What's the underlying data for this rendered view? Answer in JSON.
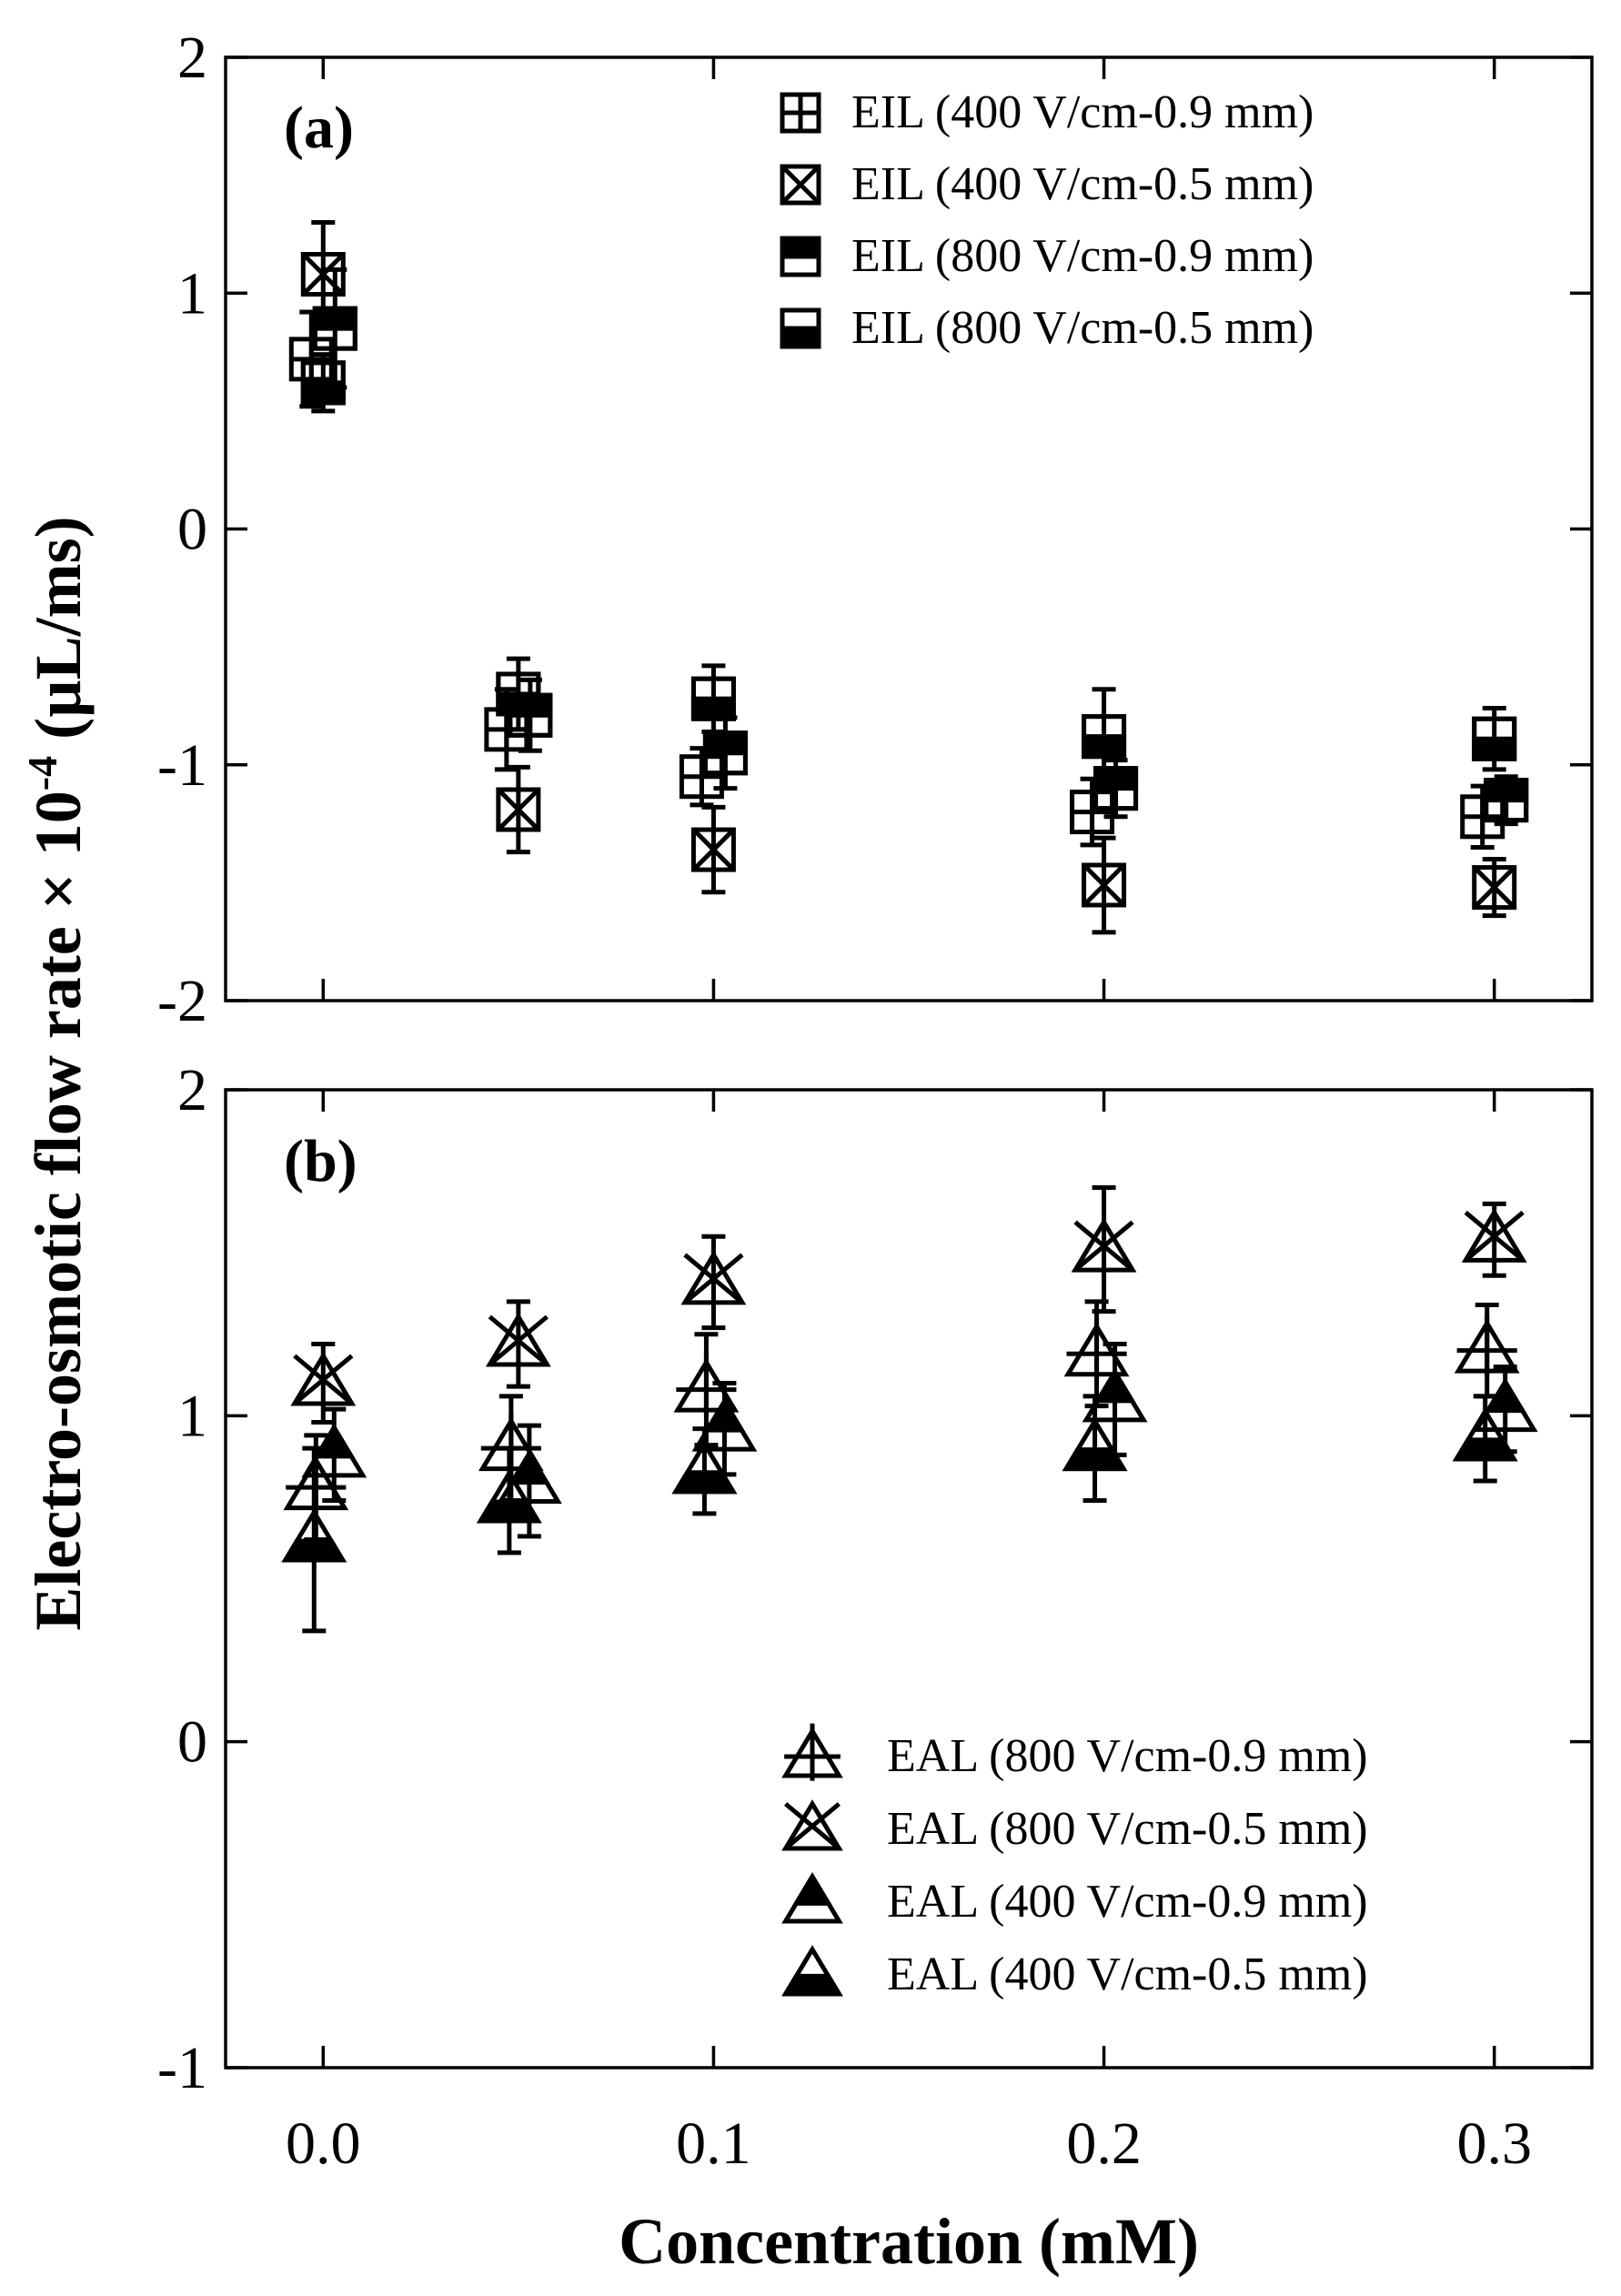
{
  "chart_data": [
    {
      "panel": "(a)",
      "type": "scatter",
      "ylim": [
        -2,
        2
      ],
      "xlim": [
        -0.025,
        0.325
      ],
      "x_ticks": [
        "0.0",
        "0.1",
        "0.2",
        "0.3"
      ],
      "y_ticks": [
        "-2",
        "-1",
        "0",
        "1",
        "2"
      ],
      "legend_position": "top-right",
      "series": [
        {
          "name": "EIL (400 V/cm-0.9 mm)",
          "marker": "square-plus",
          "x": [
            0.0,
            0.05,
            0.1,
            0.2,
            0.3
          ],
          "y": [
            0.72,
            -0.85,
            -1.05,
            -1.2,
            -1.22
          ],
          "err": [
            0.2,
            0.17,
            0.12,
            0.14,
            0.13
          ]
        },
        {
          "name": "EIL (400 V/cm-0.5 mm)",
          "marker": "square-x",
          "x": [
            0.0,
            0.05,
            0.1,
            0.2,
            0.3
          ],
          "y": [
            1.08,
            -1.19,
            -1.36,
            -1.51,
            -1.52
          ],
          "err": [
            0.22,
            0.18,
            0.18,
            0.2,
            0.12
          ]
        },
        {
          "name": "EIL (800 V/cm-0.9 mm)",
          "marker": "square-top-filled",
          "x": [
            0.0,
            0.05,
            0.1,
            0.2,
            0.3
          ],
          "y": [
            0.85,
            -0.79,
            -0.95,
            -1.1,
            -1.15
          ],
          "err": [
            0.25,
            0.15,
            0.15,
            0.12,
            0.1
          ]
        },
        {
          "name": "EIL (800 V/cm-0.5 mm)",
          "marker": "square-bottom-filled",
          "x": [
            0.0,
            0.05,
            0.1,
            0.2,
            0.3
          ],
          "y": [
            0.62,
            -0.7,
            -0.72,
            -0.88,
            -0.89
          ],
          "err": [
            0.12,
            0.15,
            0.14,
            0.2,
            0.13
          ]
        }
      ]
    },
    {
      "panel": "(b)",
      "type": "scatter",
      "ylim": [
        -1,
        2
      ],
      "xlim": [
        -0.025,
        0.325
      ],
      "x_ticks": [
        "0.0",
        "0.1",
        "0.2",
        "0.3"
      ],
      "y_ticks": [
        "-1",
        "0",
        "1",
        "2"
      ],
      "legend_position": "bottom-right",
      "series": [
        {
          "name": "EAL (800 V/cm-0.9 mm)",
          "marker": "triangle-plus",
          "x": [
            0.0,
            0.05,
            0.1,
            0.2,
            0.3
          ],
          "y": [
            0.78,
            0.9,
            1.08,
            1.19,
            1.2
          ],
          "err": [
            0.16,
            0.16,
            0.17,
            0.16,
            0.14
          ]
        },
        {
          "name": "EAL (800 V/cm-0.5 mm)",
          "marker": "triangle-x",
          "x": [
            0.0,
            0.05,
            0.1,
            0.2,
            0.3
          ],
          "y": [
            1.1,
            1.22,
            1.41,
            1.51,
            1.54
          ],
          "err": [
            0.12,
            0.13,
            0.14,
            0.19,
            0.11
          ]
        },
        {
          "name": "EAL (400 V/cm-0.9 mm)",
          "marker": "triangle-top-filled",
          "x": [
            0.0,
            0.05,
            0.1,
            0.2,
            0.3
          ],
          "y": [
            0.88,
            0.8,
            0.96,
            1.05,
            1.02
          ],
          "err": [
            0.14,
            0.17,
            0.14,
            0.17,
            0.13
          ]
        },
        {
          "name": "EAL (400 V/cm-0.5 mm)",
          "marker": "triangle-bottom-filled",
          "x": [
            0.0,
            0.05,
            0.1,
            0.2,
            0.3
          ],
          "y": [
            0.62,
            0.74,
            0.83,
            0.9,
            0.93
          ],
          "err": [
            0.28,
            0.16,
            0.13,
            0.16,
            0.13
          ]
        }
      ]
    }
  ],
  "axes": {
    "xlabel": "Concentration (mM)",
    "ylabel_main": "Electro-osmotic flow rate × 10",
    "ylabel_exponent": "-4",
    "ylabel_units": " (µL/ms)"
  }
}
